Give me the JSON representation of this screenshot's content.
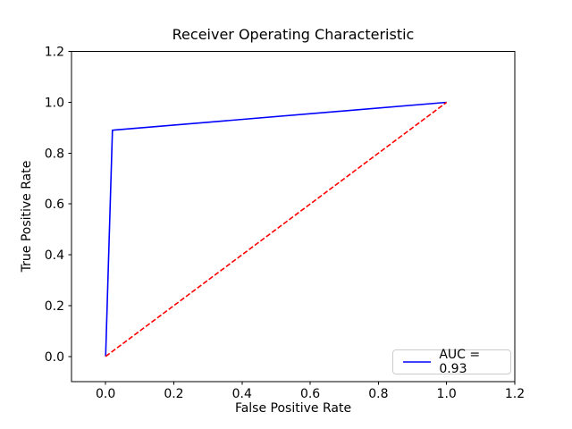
{
  "chart_data": {
    "type": "line",
    "title": "Receiver Operating Characteristic",
    "xlabel": "False Positive Rate",
    "ylabel": "True Positive Rate",
    "xlim": [
      -0.1,
      1.2
    ],
    "ylim": [
      -0.1,
      1.2
    ],
    "xticks": [
      0.0,
      0.2,
      0.4,
      0.6,
      0.8,
      1.0,
      1.2
    ],
    "xtick_labels": [
      "0.0",
      "0.2",
      "0.4",
      "0.6",
      "0.8",
      "1.0",
      "1.2"
    ],
    "yticks": [
      0.0,
      0.2,
      0.4,
      0.6,
      0.8,
      1.0,
      1.2
    ],
    "ytick_labels": [
      "0.0",
      "0.2",
      "0.4",
      "0.6",
      "0.8",
      "1.0",
      "1.2"
    ],
    "grid": false,
    "background": "#ffffff",
    "spine_color": "#000000",
    "series": [
      {
        "name": "roc-curve",
        "color": "#0000ff",
        "style": "solid",
        "linewidth": 1.5,
        "x": [
          0.0,
          0.02,
          1.0
        ],
        "y": [
          0.0,
          0.89,
          1.0
        ]
      },
      {
        "name": "chance-diagonal",
        "color": "#ff0000",
        "style": "dashed",
        "linewidth": 1.5,
        "x": [
          0.0,
          1.0
        ],
        "y": [
          0.0,
          1.0
        ]
      }
    ],
    "legend": {
      "label": "AUC = 0.93",
      "position": "lower right",
      "border_color": "#cccccc"
    }
  }
}
